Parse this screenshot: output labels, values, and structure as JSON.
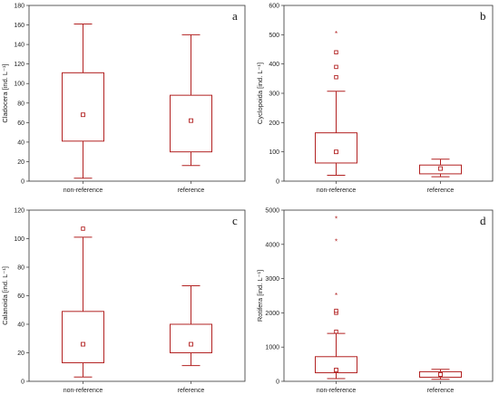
{
  "chart_data": [
    {
      "type": "box",
      "panel_label": "a",
      "ylabel": "Cladocera [ind. L⁻¹]",
      "ylim": [
        0,
        180
      ],
      "yticks": [
        0,
        20,
        40,
        60,
        80,
        100,
        120,
        140,
        160,
        180
      ],
      "categories": [
        "non-reference",
        "reference"
      ],
      "boxes": [
        {
          "category": "non-reference",
          "min": 3,
          "q1": 41,
          "median": 68,
          "q3": 111,
          "max": 161,
          "outliers": [],
          "extremes": []
        },
        {
          "category": "reference",
          "min": 16,
          "q1": 30,
          "median": 62,
          "q3": 88,
          "max": 150,
          "outliers": [],
          "extremes": []
        }
      ]
    },
    {
      "type": "box",
      "panel_label": "b",
      "ylabel": "Cyclopoida [ind. L⁻¹]",
      "ylim": [
        0,
        600
      ],
      "yticks": [
        0,
        100,
        200,
        300,
        400,
        500,
        600
      ],
      "categories": [
        "non-reference",
        "reference"
      ],
      "boxes": [
        {
          "category": "non-reference",
          "min": 20,
          "q1": 62,
          "median": 100,
          "q3": 165,
          "max": 307,
          "outliers": [
            355,
            390,
            440
          ],
          "extremes": [
            503
          ]
        },
        {
          "category": "reference",
          "min": 15,
          "q1": 25,
          "median": 43,
          "q3": 55,
          "max": 75,
          "outliers": [],
          "extremes": []
        }
      ]
    },
    {
      "type": "box",
      "panel_label": "c",
      "ylabel": "Calanoida [ind. L⁻¹]",
      "ylim": [
        0,
        120
      ],
      "yticks": [
        0,
        20,
        40,
        60,
        80,
        100,
        120
      ],
      "categories": [
        "non-reference",
        "reference"
      ],
      "boxes": [
        {
          "category": "non-reference",
          "min": 3,
          "q1": 13,
          "median": 26,
          "q3": 49,
          "max": 101,
          "outliers": [
            107
          ],
          "extremes": []
        },
        {
          "category": "reference",
          "min": 11,
          "q1": 20,
          "median": 26,
          "q3": 40,
          "max": 67,
          "outliers": [],
          "extremes": []
        }
      ]
    },
    {
      "type": "box",
      "panel_label": "d",
      "ylabel": "Rotifera [ind. L⁻¹]",
      "ylim": [
        0,
        5000
      ],
      "yticks": [
        0,
        1000,
        2000,
        3000,
        4000,
        5000
      ],
      "categories": [
        "non-reference",
        "reference"
      ],
      "boxes": [
        {
          "category": "non-reference",
          "min": 80,
          "q1": 250,
          "median": 330,
          "q3": 720,
          "max": 1400,
          "outliers": [
            1450,
            2000,
            2060
          ],
          "extremes": [
            2500,
            4080,
            4740
          ]
        },
        {
          "category": "reference",
          "min": 60,
          "q1": 120,
          "median": 200,
          "q3": 280,
          "max": 350,
          "outliers": [],
          "extremes": []
        }
      ]
    }
  ],
  "colors": {
    "box": "#b22222",
    "frame": "#333333"
  }
}
